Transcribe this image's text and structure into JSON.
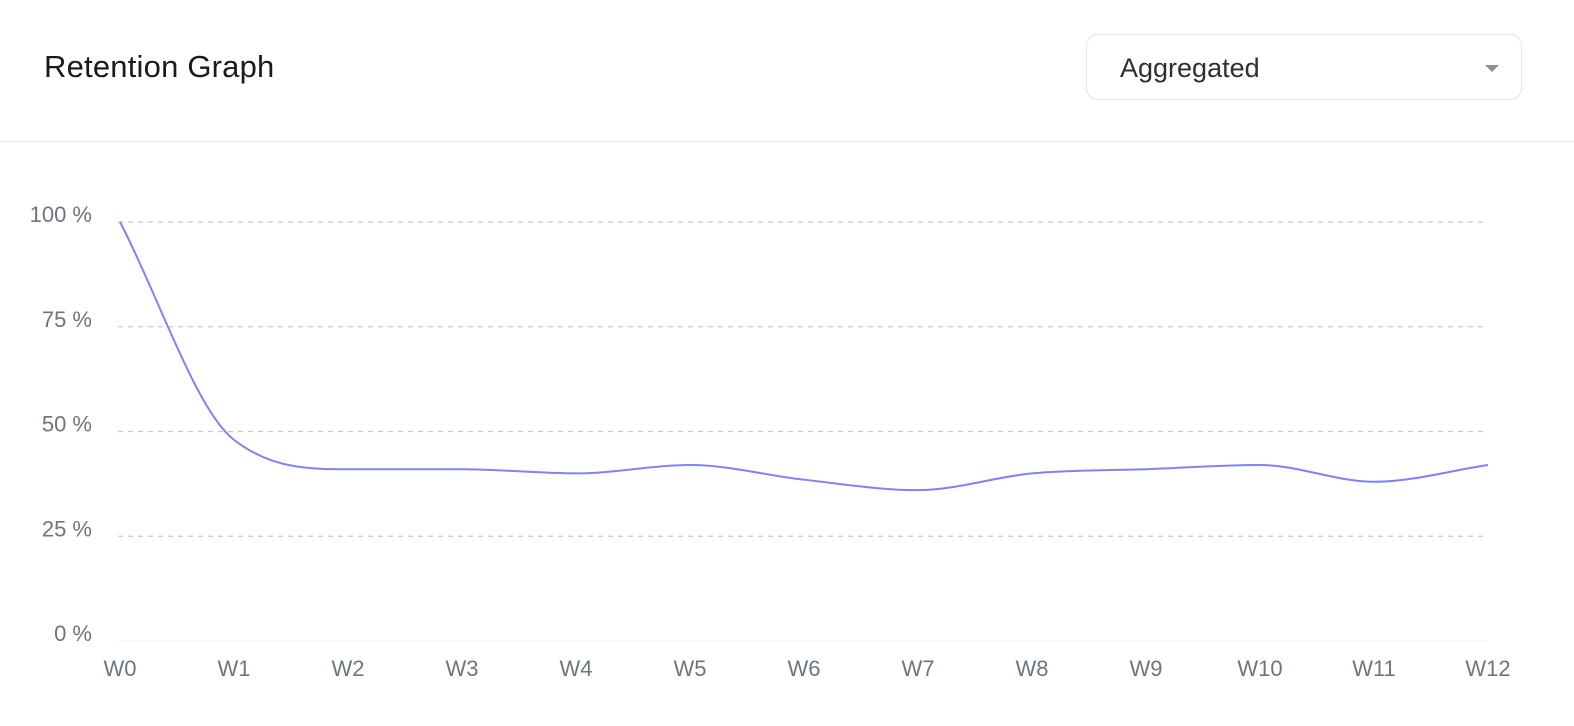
{
  "header": {
    "title": "Retention Graph"
  },
  "view_select": {
    "value": "Aggregated",
    "caret_icon": "caret-down-icon"
  },
  "chart_data": {
    "type": "line",
    "x": [
      "W0",
      "W1",
      "W2",
      "W3",
      "W4",
      "W5",
      "W6",
      "W7",
      "W8",
      "W9",
      "W10",
      "W11",
      "W12"
    ],
    "series": [
      {
        "values": [
          100,
          48,
          41,
          41,
          40,
          42,
          38.5,
          36,
          40,
          41,
          42,
          38,
          42
        ],
        "color": "#8183f4"
      }
    ],
    "yticks": [
      0,
      25,
      50,
      75,
      100
    ],
    "ytick_labels": [
      "0 %",
      "25 %",
      "50 %",
      "75 %",
      "100 %"
    ],
    "ylim": [
      0,
      100
    ],
    "grid": "horizontal-dashed",
    "gridColor": "#c8cad0"
  }
}
